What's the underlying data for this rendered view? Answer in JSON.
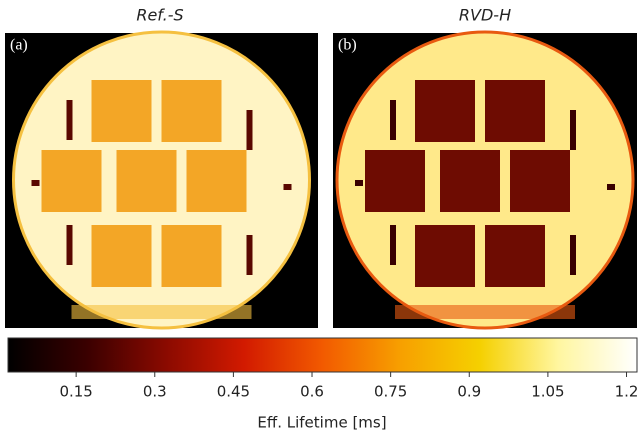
{
  "panels": [
    {
      "title": "Ref.-S",
      "label": "(a)"
    },
    {
      "title": "RVD-H",
      "label": "(b)"
    }
  ],
  "colorbar": {
    "label": "Eff. Lifetime [ms]",
    "lim": [
      0.02,
      1.22
    ],
    "ticks": [
      0.15,
      0.3,
      0.45,
      0.6,
      0.75,
      0.9,
      1.05,
      1.2
    ],
    "colors": [
      "#000000",
      "#3a0000",
      "#8a0a00",
      "#d21a00",
      "#f25a00",
      "#f7a000",
      "#f5d000",
      "#fff6a0",
      "#ffffff"
    ]
  }
}
